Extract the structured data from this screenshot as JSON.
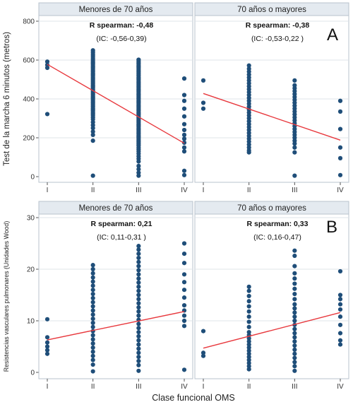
{
  "colors": {
    "point": "#1f4e79",
    "fit_line": "#e8383d",
    "strip_bg": "#e4eaf0"
  },
  "xlabel": "Clase funcional OMS",
  "chart_data": [
    {
      "type": "scatter",
      "panel_letter": "A",
      "ylabel": "Test de la marcha 6 minutos (metros)",
      "ylim": [
        0,
        800
      ],
      "yticks": [
        "0",
        "200",
        "400",
        "600",
        "800"
      ],
      "ytick_values": [
        0,
        200,
        400,
        600,
        800
      ],
      "categories": [
        "I",
        "II",
        "III",
        "IV"
      ],
      "grid": true,
      "facets": [
        {
          "title": "Menores de 70 años",
          "stat_label": "R spearman:",
          "stat_value": "-0,48",
          "ci_text": "(IC: -0,56-0,39)",
          "fit_line": {
            "from": [
              1,
              578
            ],
            "to": [
              4,
              172
            ]
          },
          "points": {
            "I": [
              592,
              575,
              560,
              322
            ],
            "II": [
              650,
              640,
              630,
              620,
              610,
              600,
              592,
              585,
              578,
              570,
              562,
              555,
              548,
              540,
              532,
              525,
              518,
              510,
              502,
              495,
              488,
              480,
              472,
              465,
              458,
              450,
              442,
              435,
              428,
              420,
              412,
              405,
              398,
              390,
              382,
              375,
              368,
              360,
              352,
              345,
              338,
              330,
              322,
              315,
              305,
              295,
              280,
              265,
              250,
              232,
              215,
              185,
              5
            ],
            "III": [
              602,
              595,
              588,
              580,
              572,
              565,
              558,
              550,
              542,
              535,
              528,
              520,
              512,
              505,
              498,
              490,
              482,
              475,
              468,
              460,
              452,
              445,
              438,
              430,
              422,
              415,
              408,
              400,
              392,
              385,
              378,
              370,
              362,
              355,
              348,
              340,
              332,
              325,
              318,
              310,
              302,
              295,
              288,
              280,
              272,
              265,
              258,
              250,
              242,
              235,
              228,
              220,
              212,
              205,
              198,
              190,
              182,
              175,
              168,
              160,
              150,
              140,
              130,
              118,
              105,
              92,
              78,
              55,
              38,
              20,
              5
            ],
            "IV": [
              505,
              420,
              390,
              350,
              310,
              270,
              240,
              215,
              195,
              175,
              150,
              130,
              30,
              8
            ]
          }
        },
        {
          "title": "70 años o mayores",
          "stat_label": "R spearman:",
          "stat_value": "-0,38",
          "ci_text": "(IC: -0,53-0,22 )",
          "fit_line": {
            "from": [
              1,
              428
            ],
            "to": [
              4,
              188
            ]
          },
          "points": {
            "I": [
              495,
              380,
              350
            ],
            "II": [
              572,
              555,
              540,
              525,
              510,
              495,
              480,
              465,
              450,
              435,
              420,
              405,
              390,
              375,
              360,
              345,
              330,
              315,
              300,
              285,
              270,
              255,
              240,
              225,
              210,
              195,
              180,
              165,
              150,
              135,
              125
            ],
            "III": [
              495,
              470,
              455,
              440,
              425,
              410,
              395,
              380,
              365,
              350,
              335,
              320,
              305,
              290,
              275,
              260,
              245,
              230,
              215,
              200,
              185,
              170,
              150,
              125,
              5
            ],
            "IV": [
              390,
              335,
              245,
              150,
              95,
              8
            ]
          }
        }
      ]
    },
    {
      "type": "scatter",
      "panel_letter": "B",
      "ylabel": "Resistencias vasculares pulmonares (Unidades Wood)",
      "ylim": [
        0,
        30
      ],
      "yticks": [
        "0",
        "10",
        "20",
        "30"
      ],
      "ytick_values": [
        0,
        10,
        20,
        30
      ],
      "categories": [
        "I",
        "II",
        "III",
        "IV"
      ],
      "grid": true,
      "facets": [
        {
          "title": "Menores de 70 años",
          "stat_label": "R spearman:",
          "stat_value": "0,21",
          "ci_text": "(IC: 0,11-0,31 )",
          "fit_line": {
            "from": [
              1,
              6.3
            ],
            "to": [
              4,
              11.8
            ]
          },
          "points": {
            "I": [
              10.3,
              6.8,
              5.8,
              5.0,
              4.3,
              3.6
            ],
            "II": [
              20.8,
              20.0,
              19.2,
              18.4,
              17.6,
              16.8,
              16.0,
              15.2,
              14.4,
              13.6,
              12.8,
              12.0,
              11.2,
              10.4,
              9.6,
              8.8,
              8.0,
              7.2,
              6.4,
              5.6,
              4.8,
              4.0,
              3.2,
              2.4,
              1.5,
              0.2
            ],
            "III": [
              24.5,
              23.8,
              23.0,
              22.2,
              21.4,
              20.6,
              19.8,
              19.0,
              18.2,
              17.4,
              16.6,
              15.8,
              15.0,
              14.2,
              13.4,
              12.6,
              11.8,
              11.0,
              10.2,
              9.4,
              8.6,
              7.8,
              7.0,
              6.2,
              5.4,
              4.6,
              3.8,
              3.0,
              2.2,
              1.4,
              0.3
            ],
            "IV": [
              25.0,
              23.0,
              21.2,
              19.0,
              17.5,
              16.0,
              14.5,
              13.0,
              12.0,
              11.0,
              10.0,
              9.0,
              0.5
            ]
          }
        },
        {
          "title": "70 años o mayores",
          "stat_label": "R spearman:",
          "stat_value": "0,33",
          "ci_text": "(IC: 0,16-0,47)",
          "fit_line": {
            "from": [
              1,
              4.7
            ],
            "to": [
              4,
              11.6
            ]
          },
          "points": {
            "I": [
              8.0,
              3.8,
              3.2
            ],
            "II": [
              16.6,
              15.8,
              14.8,
              13.8,
              12.8,
              11.8,
              10.8,
              9.8,
              8.8,
              7.8,
              7.2,
              6.6,
              6.0,
              5.4,
              4.8,
              4.2,
              3.6,
              3.0,
              2.4,
              1.8,
              1.2,
              0.6
            ],
            "III": [
              23.6,
              22.6,
              20.6,
              19.2,
              18.2,
              17.2,
              16.2,
              15.2,
              14.2,
              13.2,
              12.4,
              11.6,
              10.8,
              10.0,
              9.2,
              8.4,
              7.6,
              6.8,
              6.0,
              5.2,
              4.4,
              3.6,
              2.8,
              2.0,
              1.2,
              0.3
            ],
            "IV": [
              19.6,
              15.0,
              14.2,
              13.2,
              12.2,
              10.8,
              9.2,
              7.6,
              6.2,
              5.4
            ]
          }
        }
      ]
    }
  ]
}
